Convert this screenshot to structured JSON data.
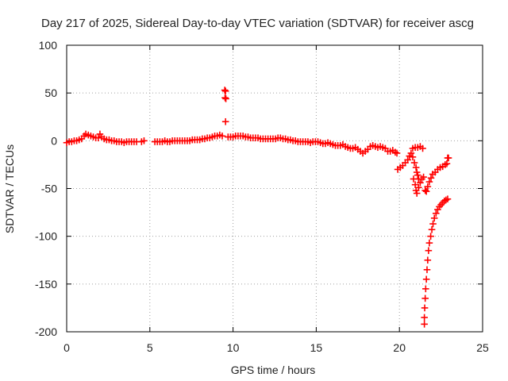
{
  "chart_data": {
    "type": "scatter",
    "title": "Day 217 of 2025, Sidereal Day-to-day VTEC variation (SDTVAR) for receiver ascg",
    "xlabel": "GPS time / hours",
    "ylabel": "SDTVAR / TECUs",
    "xlim": [
      0,
      25
    ],
    "ylim": [
      -200,
      100
    ],
    "xticks": [
      0,
      5,
      10,
      15,
      20,
      25
    ],
    "xtick_labels": [
      "0",
      "5",
      "10",
      "15",
      "20",
      "25"
    ],
    "yticks": [
      100,
      50,
      0,
      -50,
      -100,
      -150,
      -200
    ],
    "ytick_labels": [
      "100",
      "50",
      "0",
      "-50",
      "-100",
      "-150",
      "-200"
    ],
    "grid": true,
    "marker": "+",
    "color": "#ff0000",
    "series": [
      {
        "name": "SDTVAR",
        "points": [
          [
            0.0,
            -2
          ],
          [
            0.15,
            -1
          ],
          [
            0.3,
            -1
          ],
          [
            0.45,
            0
          ],
          [
            0.6,
            0
          ],
          [
            0.75,
            1
          ],
          [
            0.9,
            2
          ],
          [
            1.05,
            5
          ],
          [
            1.15,
            7
          ],
          [
            1.3,
            6
          ],
          [
            1.45,
            5
          ],
          [
            1.6,
            4
          ],
          [
            1.75,
            3
          ],
          [
            1.9,
            3
          ],
          [
            2.0,
            7
          ],
          [
            2.1,
            4
          ],
          [
            2.25,
            2
          ],
          [
            2.4,
            1
          ],
          [
            2.55,
            1
          ],
          [
            2.7,
            0
          ],
          [
            2.85,
            0
          ],
          [
            3.0,
            -1
          ],
          [
            3.15,
            -1
          ],
          [
            3.3,
            -1
          ],
          [
            3.45,
            -2
          ],
          [
            3.6,
            -1
          ],
          [
            3.75,
            -1
          ],
          [
            3.9,
            -1
          ],
          [
            4.05,
            -1
          ],
          [
            4.2,
            -1
          ],
          [
            4.5,
            -1
          ],
          [
            4.65,
            0
          ],
          [
            5.3,
            -1
          ],
          [
            5.45,
            -1
          ],
          [
            5.6,
            -1
          ],
          [
            5.75,
            -1
          ],
          [
            5.9,
            0
          ],
          [
            6.05,
            -1
          ],
          [
            6.2,
            -1
          ],
          [
            6.35,
            0
          ],
          [
            6.5,
            0
          ],
          [
            6.65,
            0
          ],
          [
            6.8,
            0
          ],
          [
            6.95,
            0
          ],
          [
            7.1,
            0
          ],
          [
            7.25,
            0
          ],
          [
            7.4,
            0
          ],
          [
            7.55,
            1
          ],
          [
            7.7,
            1
          ],
          [
            7.85,
            1
          ],
          [
            8.0,
            1
          ],
          [
            8.15,
            2
          ],
          [
            8.3,
            2
          ],
          [
            8.45,
            3
          ],
          [
            8.6,
            3
          ],
          [
            8.75,
            4
          ],
          [
            8.9,
            5
          ],
          [
            9.05,
            5
          ],
          [
            9.2,
            6
          ],
          [
            9.35,
            5
          ],
          [
            9.5,
            53
          ],
          [
            9.55,
            52
          ],
          [
            9.52,
            45
          ],
          [
            9.57,
            44
          ],
          [
            9.55,
            20
          ],
          [
            9.7,
            4
          ],
          [
            9.85,
            4
          ],
          [
            10.0,
            4
          ],
          [
            10.15,
            5
          ],
          [
            10.3,
            5
          ],
          [
            10.45,
            5
          ],
          [
            10.6,
            5
          ],
          [
            10.75,
            4
          ],
          [
            10.9,
            4
          ],
          [
            11.05,
            3
          ],
          [
            11.2,
            3
          ],
          [
            11.35,
            3
          ],
          [
            11.5,
            3
          ],
          [
            11.65,
            2
          ],
          [
            11.8,
            2
          ],
          [
            11.95,
            2
          ],
          [
            12.1,
            2
          ],
          [
            12.25,
            2
          ],
          [
            12.4,
            2
          ],
          [
            12.55,
            2
          ],
          [
            12.7,
            3
          ],
          [
            12.85,
            3
          ],
          [
            13.0,
            2
          ],
          [
            13.15,
            2
          ],
          [
            13.3,
            1
          ],
          [
            13.45,
            1
          ],
          [
            13.6,
            0
          ],
          [
            13.75,
            0
          ],
          [
            13.9,
            -1
          ],
          [
            14.05,
            -1
          ],
          [
            14.2,
            -1
          ],
          [
            14.35,
            -1
          ],
          [
            14.5,
            -1
          ],
          [
            14.65,
            -2
          ],
          [
            14.8,
            -1
          ],
          [
            14.95,
            -1
          ],
          [
            15.1,
            -1
          ],
          [
            15.25,
            -2
          ],
          [
            15.4,
            -3
          ],
          [
            15.55,
            -3
          ],
          [
            15.7,
            -2
          ],
          [
            15.85,
            -3
          ],
          [
            16.0,
            -4
          ],
          [
            16.15,
            -5
          ],
          [
            16.3,
            -5
          ],
          [
            16.45,
            -5
          ],
          [
            16.6,
            -4
          ],
          [
            16.75,
            -6
          ],
          [
            16.9,
            -7
          ],
          [
            17.05,
            -8
          ],
          [
            17.2,
            -8
          ],
          [
            17.35,
            -7
          ],
          [
            17.5,
            -9
          ],
          [
            17.65,
            -11
          ],
          [
            17.8,
            -13
          ],
          [
            17.95,
            -11
          ],
          [
            18.1,
            -9
          ],
          [
            18.25,
            -6
          ],
          [
            18.4,
            -5
          ],
          [
            18.55,
            -6
          ],
          [
            18.7,
            -7
          ],
          [
            18.85,
            -6
          ],
          [
            19.0,
            -7
          ],
          [
            19.15,
            -8
          ],
          [
            19.3,
            -11
          ],
          [
            19.45,
            -11
          ],
          [
            19.6,
            -10
          ],
          [
            19.75,
            -12
          ],
          [
            19.85,
            -13
          ],
          [
            19.9,
            -30
          ],
          [
            20.05,
            -28
          ],
          [
            20.2,
            -26
          ],
          [
            20.35,
            -23
          ],
          [
            20.5,
            -20
          ],
          [
            20.6,
            -16
          ],
          [
            20.7,
            -13
          ],
          [
            20.8,
            -8
          ],
          [
            20.95,
            -7
          ],
          [
            21.1,
            -7
          ],
          [
            21.25,
            -6
          ],
          [
            21.4,
            -8
          ],
          [
            20.8,
            -17
          ],
          [
            20.9,
            -23
          ],
          [
            21.0,
            -28
          ],
          [
            21.05,
            -33
          ],
          [
            21.1,
            -36
          ],
          [
            21.15,
            -40
          ],
          [
            20.85,
            -40
          ],
          [
            20.95,
            -46
          ],
          [
            21.0,
            -52
          ],
          [
            21.05,
            -55
          ],
          [
            21.15,
            -49
          ],
          [
            21.25,
            -44
          ],
          [
            21.35,
            -40
          ],
          [
            21.45,
            -38
          ],
          [
            21.55,
            -52
          ],
          [
            21.62,
            -53
          ],
          [
            21.7,
            -48
          ],
          [
            21.8,
            -43
          ],
          [
            21.9,
            -39
          ],
          [
            22.0,
            -35
          ],
          [
            22.15,
            -33
          ],
          [
            22.3,
            -30
          ],
          [
            22.45,
            -28
          ],
          [
            22.6,
            -27
          ],
          [
            22.75,
            -25
          ],
          [
            22.85,
            -24
          ],
          [
            22.9,
            -18
          ],
          [
            22.95,
            -18
          ],
          [
            21.5,
            -192
          ],
          [
            21.5,
            -185
          ],
          [
            21.52,
            -175
          ],
          [
            21.55,
            -165
          ],
          [
            21.58,
            -155
          ],
          [
            21.62,
            -145
          ],
          [
            21.66,
            -135
          ],
          [
            21.7,
            -125
          ],
          [
            21.75,
            -115
          ],
          [
            21.8,
            -107
          ],
          [
            21.88,
            -100
          ],
          [
            21.95,
            -93
          ],
          [
            22.02,
            -87
          ],
          [
            22.1,
            -81
          ],
          [
            22.2,
            -76
          ],
          [
            22.3,
            -72
          ],
          [
            22.4,
            -69
          ],
          [
            22.5,
            -67
          ],
          [
            22.6,
            -65
          ],
          [
            22.7,
            -63
          ],
          [
            22.8,
            -62
          ],
          [
            22.9,
            -61
          ]
        ]
      }
    ]
  }
}
